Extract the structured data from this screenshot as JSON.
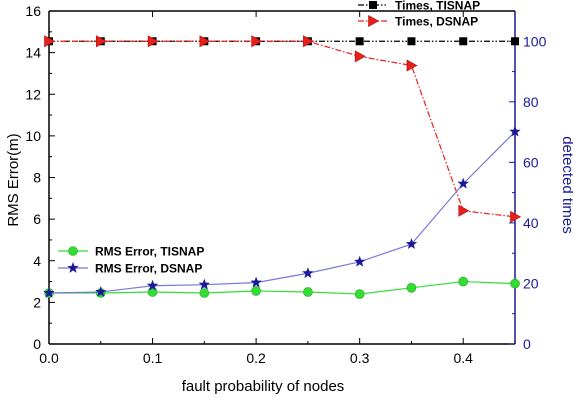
{
  "chart_data": {
    "type": "line",
    "xlabel": "fault probability of nodes",
    "ylabel_left": "RMS Error(m)",
    "ylabel_right": "detected times",
    "xlim": [
      0.0,
      0.45
    ],
    "ylim_left": [
      0,
      16
    ],
    "ylim_right": [
      0,
      110
    ],
    "x_ticks": [
      "0.0",
      "0.1",
      "0.2",
      "0.3",
      "0.4"
    ],
    "x_tick_values": [
      0.0,
      0.1,
      0.2,
      0.3,
      0.4
    ],
    "y_left_ticks": [
      "0",
      "2",
      "4",
      "6",
      "8",
      "10",
      "12",
      "14",
      "16"
    ],
    "y_left_tick_values": [
      0,
      2,
      4,
      6,
      8,
      10,
      12,
      14,
      16
    ],
    "y_right_ticks": [
      "0",
      "20",
      "40",
      "60",
      "80",
      "100"
    ],
    "y_right_tick_values": [
      0,
      20,
      40,
      60,
      80,
      100
    ],
    "grid": false,
    "x": [
      0.0,
      0.05,
      0.1,
      0.15,
      0.2,
      0.25,
      0.3,
      0.35,
      0.4,
      0.45
    ],
    "series": [
      {
        "name": "Times, TISNAP",
        "axis": "right",
        "marker": "square",
        "line_style": "dash-dot-dot",
        "color": "#000000",
        "values": [
          100,
          100,
          100,
          100,
          100,
          100,
          100,
          100,
          100,
          100
        ]
      },
      {
        "name": "Times, DSNAP",
        "axis": "right",
        "marker": "triangle-right",
        "line_style": "dash-dot",
        "color": "#e8201a",
        "values": [
          100,
          100,
          100,
          100,
          100,
          100,
          95,
          92,
          44,
          42
        ]
      },
      {
        "name": "RMS Error, TISNAP",
        "axis": "left",
        "marker": "circle",
        "line_style": "solid",
        "color": "#33dd33",
        "values": [
          2.45,
          2.45,
          2.5,
          2.45,
          2.55,
          2.5,
          2.4,
          2.7,
          3.0,
          2.9
        ]
      },
      {
        "name": "RMS Error, DSNAP",
        "axis": "left",
        "marker": "star",
        "line_style": "solid",
        "color": "#7777dd",
        "values": [
          2.45,
          2.5,
          2.8,
          2.85,
          2.95,
          3.4,
          3.95,
          4.8,
          7.7,
          10.2
        ]
      }
    ],
    "legends": [
      {
        "placement": "top-right",
        "entries": [
          "Times, TISNAP",
          "Times, DSNAP"
        ]
      },
      {
        "placement": "center-left",
        "entries": [
          "RMS Error, TISNAP",
          "RMS Error, DSNAP"
        ]
      }
    ],
    "colors": {
      "left_axis": "#000000",
      "right_axis": "#1a1a99",
      "marker_stroke_star": "#1a1a99",
      "marker_stroke_circle": "#22aa22"
    }
  }
}
